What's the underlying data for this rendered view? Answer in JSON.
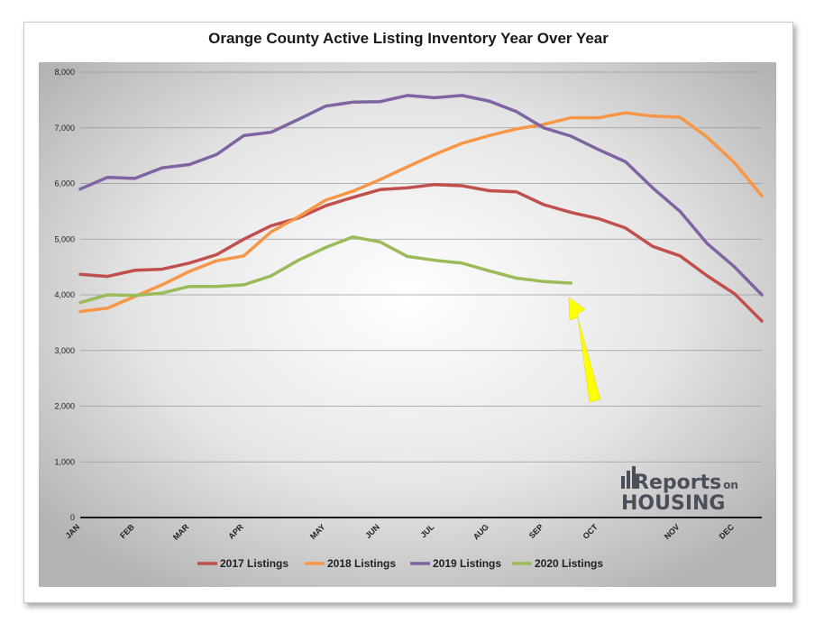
{
  "chart_data": {
    "type": "line",
    "title": "Orange County Active Listing Inventory Year Over Year",
    "xlabel": "",
    "ylabel": "",
    "ylim": [
      0,
      8000
    ],
    "yticks": [
      0,
      1000,
      2000,
      3000,
      4000,
      5000,
      6000,
      7000,
      8000
    ],
    "ytick_labels": [
      "0",
      "1,000",
      "2,000",
      "3,000",
      "4,000",
      "5,000",
      "6,000",
      "7,000",
      "8,000"
    ],
    "month_labels": [
      "JAN",
      "FEB",
      "MAR",
      "APR",
      "MAY",
      "JUN",
      "JUL",
      "AUG",
      "SEP",
      "OCT",
      "NOV",
      "DEC"
    ],
    "month_positions": [
      0,
      2,
      4,
      6,
      9,
      11,
      13,
      15,
      17,
      19,
      22,
      24
    ],
    "x_range": [
      0,
      25
    ],
    "grid": true,
    "legend_position": "bottom",
    "series": [
      {
        "name": "2017 Listings",
        "color": "#c0504d",
        "values": [
          4370,
          4330,
          4440,
          4460,
          4570,
          4720,
          5000,
          5240,
          5380,
          5600,
          5750,
          5890,
          5920,
          5980,
          5960,
          5870,
          5850,
          5620,
          5480,
          5370,
          5200,
          4870,
          4700,
          4340,
          4020,
          3530
        ]
      },
      {
        "name": "2018 Listings",
        "color": "#f79646",
        "values": [
          3700,
          3760,
          3970,
          4180,
          4420,
          4610,
          4700,
          5130,
          5400,
          5700,
          5860,
          6070,
          6300,
          6520,
          6720,
          6860,
          6980,
          7060,
          7180,
          7180,
          7270,
          7210,
          7190,
          6830,
          6370,
          5780
        ]
      },
      {
        "name": "2019 Listings",
        "color": "#8064a2",
        "values": [
          5900,
          6110,
          6090,
          6280,
          6340,
          6520,
          6860,
          6920,
          7150,
          7390,
          7460,
          7470,
          7580,
          7540,
          7580,
          7480,
          7290,
          7000,
          6850,
          6610,
          6390,
          5920,
          5500,
          4920,
          4500,
          4000
        ]
      },
      {
        "name": "2020 Listings",
        "color": "#9bbb59",
        "values": [
          3860,
          4000,
          3990,
          4030,
          4150,
          4150,
          4180,
          4340,
          4620,
          4850,
          5040,
          4950,
          4690,
          4620,
          4570,
          4430,
          4300,
          4240,
          4210
        ]
      }
    ]
  },
  "logo": {
    "line1": "Reports",
    "line1_small": "on",
    "line2": "HOUSING"
  },
  "colors": {
    "arrow": "#ffff00",
    "plot_bg_center": "#ffffff",
    "plot_bg_edge": "#b8b8b8"
  }
}
